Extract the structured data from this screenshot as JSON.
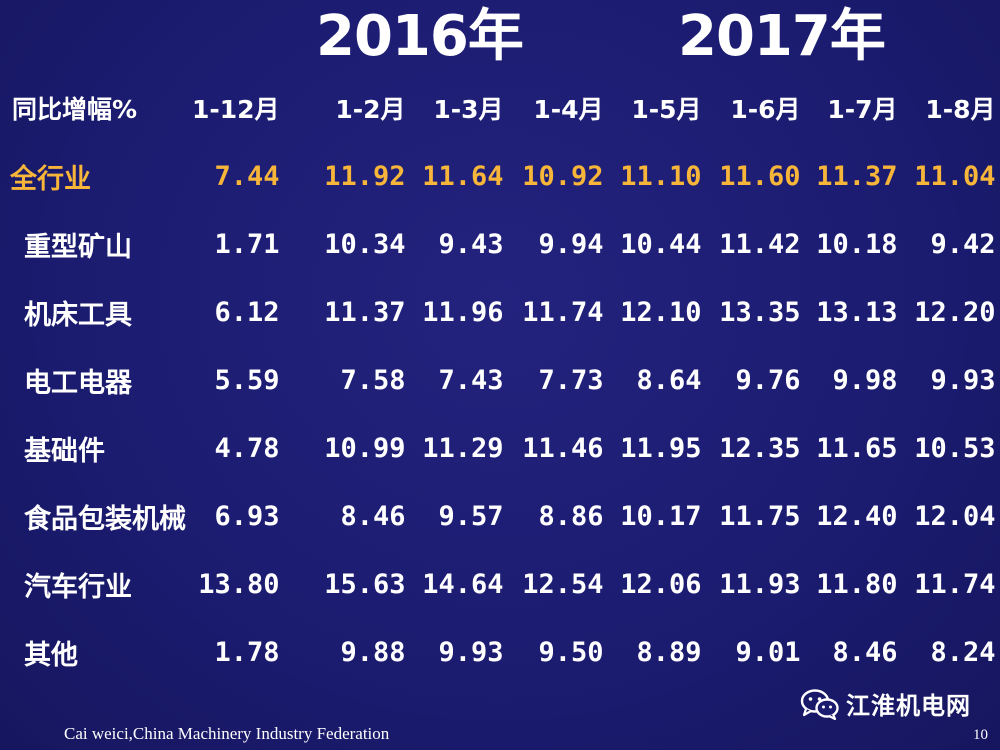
{
  "years": {
    "y2016": "2016年",
    "y2017": "2017年"
  },
  "table": {
    "header_label": "同比增幅%",
    "columns": [
      "1-12月",
      "1-2月",
      "1-3月",
      "1-4月",
      "1-5月",
      "1-6月",
      "1-7月",
      "1-8月"
    ],
    "rows": [
      {
        "label": "全行业",
        "values": [
          "7.44",
          "11.92",
          "11.64",
          "10.92",
          "11.10",
          "11.60",
          "11.37",
          "11.04"
        ],
        "highlight": true
      },
      {
        "label": "重型矿山",
        "values": [
          "1.71",
          "10.34",
          "9.43",
          "9.94",
          "10.44",
          "11.42",
          "10.18",
          "9.42"
        ]
      },
      {
        "label": "机床工具",
        "values": [
          "6.12",
          "11.37",
          "11.96",
          "11.74",
          "12.10",
          "13.35",
          "13.13",
          "12.20"
        ]
      },
      {
        "label": "电工电器",
        "values": [
          "5.59",
          "7.58",
          "7.43",
          "7.73",
          "8.64",
          "9.76",
          "9.98",
          "9.93"
        ]
      },
      {
        "label": "基础件",
        "values": [
          "4.78",
          "10.99",
          "11.29",
          "11.46",
          "11.95",
          "12.35",
          "11.65",
          "10.53"
        ]
      },
      {
        "label": "食品包装机械",
        "values": [
          "6.93",
          "8.46",
          "9.57",
          "8.86",
          "10.17",
          "11.75",
          "12.40",
          "12.04"
        ]
      },
      {
        "label": "汽车行业",
        "values": [
          "13.80",
          "15.63",
          "14.64",
          "12.54",
          "12.06",
          "11.93",
          "11.80",
          "11.74"
        ]
      },
      {
        "label": "其他",
        "values": [
          "1.78",
          "9.88",
          "9.93",
          "9.50",
          "8.89",
          "9.01",
          "8.46",
          "8.24"
        ]
      }
    ]
  },
  "footer": {
    "credit": "Cai weici,China Machinery Industry Federation",
    "page_number": "10"
  },
  "watermark": {
    "icon": "wechat-icon",
    "text": "江淮机电网"
  },
  "colors": {
    "background": "#1b1b70",
    "highlight": "#f7b53a",
    "text": "#ffffff"
  }
}
